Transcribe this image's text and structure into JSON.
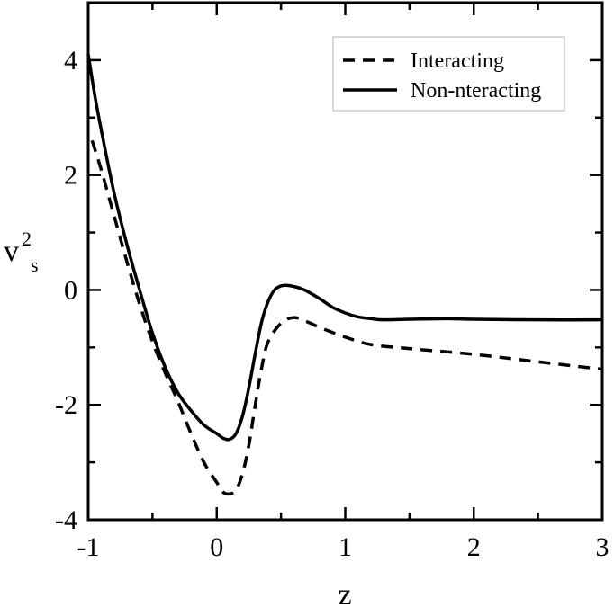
{
  "chart_data": {
    "type": "line",
    "title": "",
    "xlabel": "z",
    "ylabel": {
      "base": "v",
      "sup": "2",
      "sub": "s"
    },
    "xlim": [
      -1,
      3
    ],
    "ylim": [
      -4,
      5
    ],
    "xticks": [
      -1,
      0,
      1,
      2,
      3
    ],
    "yticks": [
      -4,
      -2,
      0,
      2,
      4
    ],
    "xtick_labels": [
      "-1",
      "0",
      "1",
      "2",
      "3"
    ],
    "ytick_labels": [
      "-4",
      "-2",
      "0",
      "2",
      "4"
    ],
    "grid": false,
    "legend_position": "top-right",
    "series": [
      {
        "name": "Interacting",
        "style": "dashed",
        "x": [
          -0.97,
          -0.9,
          -0.8,
          -0.7,
          -0.6,
          -0.5,
          -0.4,
          -0.3,
          -0.2,
          -0.1,
          0.0,
          0.05,
          0.1,
          0.15,
          0.2,
          0.25,
          0.3,
          0.35,
          0.4,
          0.5,
          0.6,
          0.7,
          0.8,
          1.0,
          1.2,
          1.5,
          2.0,
          2.5,
          3.0
        ],
        "y": [
          2.6,
          2.1,
          1.3,
          0.5,
          -0.25,
          -0.9,
          -1.45,
          -1.95,
          -2.5,
          -3.0,
          -3.35,
          -3.52,
          -3.55,
          -3.48,
          -3.2,
          -2.7,
          -2.0,
          -1.35,
          -0.9,
          -0.58,
          -0.48,
          -0.55,
          -0.65,
          -0.82,
          -0.95,
          -1.02,
          -1.12,
          -1.25,
          -1.38
        ]
      },
      {
        "name": "Non-nteracting",
        "style": "solid",
        "x": [
          -1.0,
          -0.95,
          -0.9,
          -0.8,
          -0.7,
          -0.6,
          -0.5,
          -0.4,
          -0.3,
          -0.2,
          -0.1,
          0.0,
          0.05,
          0.1,
          0.15,
          0.2,
          0.25,
          0.3,
          0.35,
          0.4,
          0.45,
          0.5,
          0.55,
          0.6,
          0.65,
          0.7,
          0.8,
          0.9,
          1.0,
          1.1,
          1.2,
          1.3,
          1.5,
          1.8,
          2.0,
          2.5,
          3.0
        ],
        "y": [
          4.1,
          3.4,
          2.8,
          1.7,
          0.8,
          0.0,
          -0.75,
          -1.35,
          -1.8,
          -2.1,
          -2.35,
          -2.5,
          -2.58,
          -2.6,
          -2.5,
          -2.2,
          -1.7,
          -1.1,
          -0.55,
          -0.2,
          0.0,
          0.07,
          0.08,
          0.06,
          0.03,
          -0.02,
          -0.15,
          -0.3,
          -0.4,
          -0.47,
          -0.5,
          -0.52,
          -0.51,
          -0.5,
          -0.51,
          -0.52,
          -0.52
        ]
      }
    ]
  }
}
